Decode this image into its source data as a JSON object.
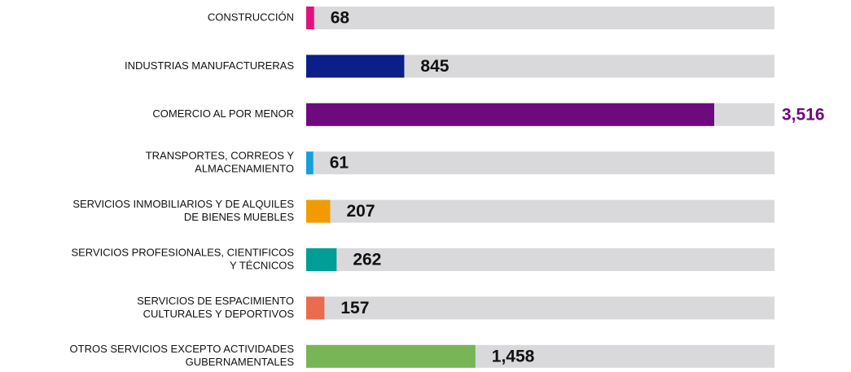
{
  "chart_data": {
    "type": "bar",
    "orientation": "horizontal",
    "categories": [
      [
        "CONSTRUCCIÓN"
      ],
      [
        "INDUSTRIAS MANUFACTURERAS"
      ],
      [
        "COMERCIO AL POR MENOR"
      ],
      [
        "TRANSPORTES, CORREOS Y",
        "ALMACENAMIENTO"
      ],
      [
        "SERVICIOS INMOBILIARIOS Y DE ALQUILES",
        "DE BIENES MUEBLES"
      ],
      [
        "SERVICIOS PROFESIONALES, CIENTIFICOS",
        "Y TÉCNICOS"
      ],
      [
        "SERVICIOS DE ESPACIMIENTO",
        "CULTURALES Y DEPORTIVOS"
      ],
      [
        "OTROS SERVICIOS EXCEPTO ACTIVIDADES",
        "GUBERNAMENTALES"
      ]
    ],
    "values": [
      68,
      845,
      3516,
      61,
      207,
      262,
      157,
      1458
    ],
    "value_labels": [
      "68",
      "845",
      "3,516",
      "61",
      "207",
      "262",
      "157",
      "1,458"
    ],
    "colors": [
      "#e0127f",
      "#0b1f8a",
      "#6e0a7e",
      "#169fdc",
      "#f09c00",
      "#009e96",
      "#ea6b4d",
      "#77b556"
    ],
    "track_color": "#d9d9dc",
    "xlim": [
      0,
      4035
    ]
  }
}
